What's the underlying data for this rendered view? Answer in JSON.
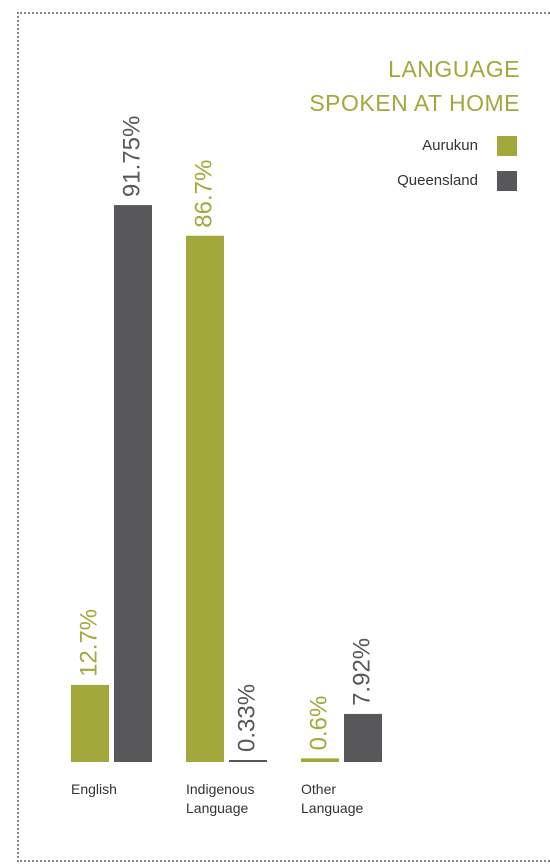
{
  "chart_data": {
    "type": "bar",
    "title": "LANGUAGE SPOKEN AT HOME",
    "categories": [
      "English",
      "Indigenous Language",
      "Other Language"
    ],
    "series": [
      {
        "name": "Aurukun",
        "color": "#a3a83a",
        "values": [
          12.7,
          86.7,
          0.6
        ],
        "value_labels": [
          "12.7%",
          "86.7%",
          "0.6%"
        ]
      },
      {
        "name": "Queensland",
        "color": "#58585a",
        "values": [
          91.75,
          0.33,
          7.92
        ],
        "value_labels": [
          "91.75%",
          "0.33%",
          "7.92%"
        ]
      }
    ],
    "ylim": [
      0,
      100
    ],
    "legend": "upper right"
  }
}
